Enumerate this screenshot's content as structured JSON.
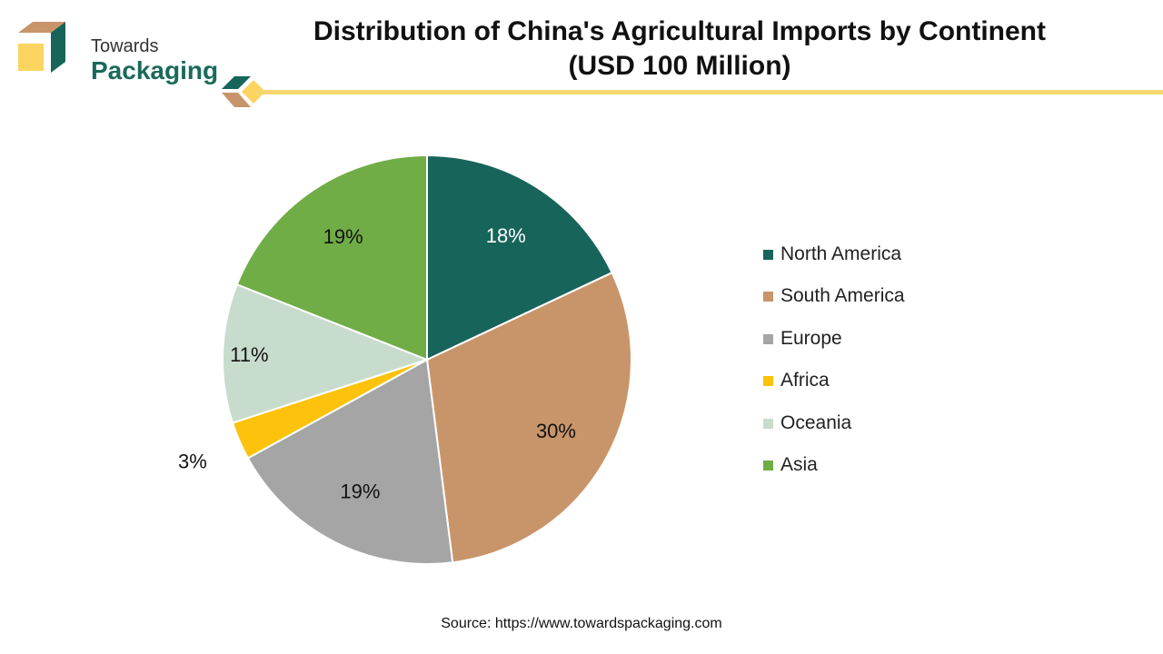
{
  "brand": {
    "name_line1": "Towards",
    "name_line2": "Packaging"
  },
  "header": {
    "title_line1": "Distribution of China's Agricultural Imports by Continent",
    "title_line2": "(USD 100 Million)"
  },
  "chart_data": {
    "type": "pie",
    "title": "Distribution of China's Agricultural Imports by Continent (USD 100 Million)",
    "categories": [
      "North America",
      "South America",
      "Europe",
      "Africa",
      "Oceania",
      "Asia"
    ],
    "values": [
      18,
      30,
      19,
      3,
      11,
      19
    ],
    "data_labels": [
      "18%",
      "30%",
      "19%",
      "3%",
      "11%",
      "19%"
    ],
    "colors": [
      "#17645a",
      "#c8956a",
      "#a5a5a5",
      "#fcc20c",
      "#c8dcce",
      "#70ad47"
    ],
    "legend_position": "right"
  },
  "footer": {
    "source": "Source: https://www.towardspackaging.com"
  }
}
